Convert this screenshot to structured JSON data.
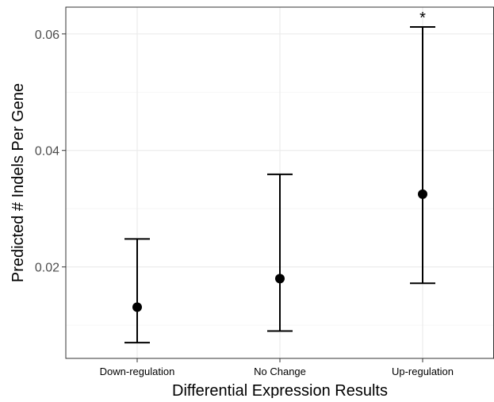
{
  "chart_data": {
    "type": "scatter",
    "error_bars": true,
    "categories": [
      "Down-regulation",
      "No Change",
      "Up-regulation"
    ],
    "values": [
      0.0131,
      0.018,
      0.0325
    ],
    "lower": [
      0.007,
      0.009,
      0.0172
    ],
    "upper": [
      0.0248,
      0.0359,
      0.0612
    ],
    "annotations": [
      "",
      "",
      "*"
    ],
    "xlabel": "Differential Expression Results",
    "ylabel": "Predicted # Indels Per Gene",
    "ylim": [
      0.0043,
      0.0646
    ],
    "yticks": [
      0.02,
      0.04,
      0.06
    ],
    "ytick_labels": [
      "0.02",
      "0.04",
      "0.06"
    ],
    "grid": true,
    "colors": {
      "background": "#ffffff",
      "grid": "#ebebeb",
      "border": "#333333",
      "marks": "#000000",
      "text": "#000000"
    }
  }
}
